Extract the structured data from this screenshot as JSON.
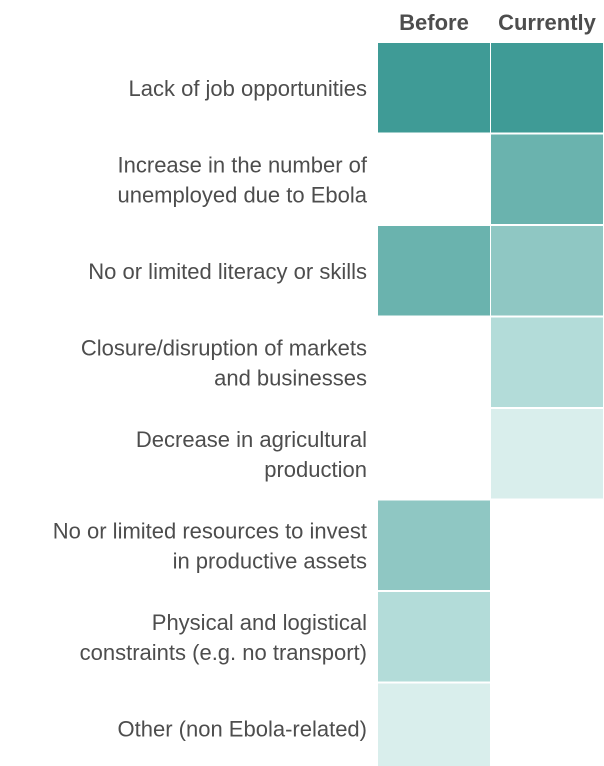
{
  "chart_data": {
    "type": "heatmap",
    "title": "",
    "columns": [
      "Before",
      "Currently"
    ],
    "rows": [
      {
        "label": [
          "Lack of job opportunities"
        ],
        "values": [
          1,
          1
        ]
      },
      {
        "label": [
          "Increase in the number of",
          "unemployed due to Ebola"
        ],
        "values": [
          null,
          2
        ]
      },
      {
        "label": [
          "No or limited literacy or skills"
        ],
        "values": [
          2,
          3
        ]
      },
      {
        "label": [
          "Closure/disruption of markets",
          "and businesses"
        ],
        "values": [
          null,
          4
        ]
      },
      {
        "label": [
          "Decrease in agricultural",
          "production"
        ],
        "values": [
          null,
          5
        ]
      },
      {
        "label": [
          "No or limited resources to invest",
          "in productive assets"
        ],
        "values": [
          3,
          null
        ]
      },
      {
        "label": [
          "Physical and logistical",
          "constraints (e.g. no transport)"
        ],
        "values": [
          4,
          null
        ]
      },
      {
        "label": [
          "Other (non Ebola-related)"
        ],
        "values": [
          5,
          null
        ]
      }
    ],
    "colors": {
      "1": "#3f9b96",
      "2": "#6ab3ae",
      "3": "#8fc7c3",
      "4": "#b3dcd9",
      "5": "#d9eeec"
    }
  }
}
